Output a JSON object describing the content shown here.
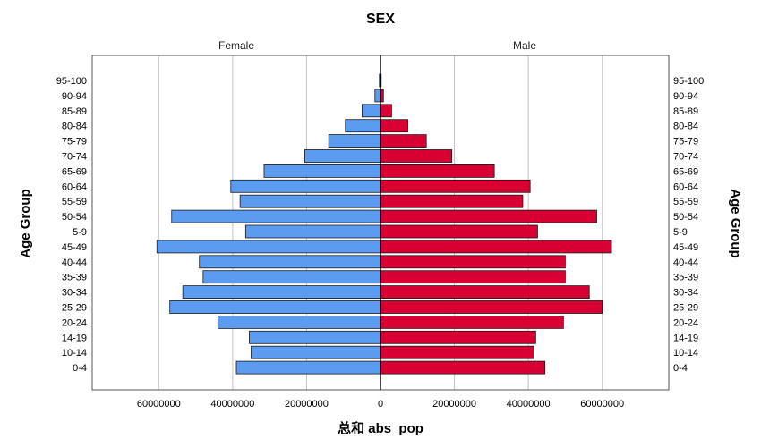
{
  "chart_data": {
    "type": "bar",
    "orientation": "horizontal-butterfly",
    "title": "SEX",
    "xlabel": "总和 abs_pop",
    "ylabel": "Age Group",
    "categories": [
      "0-4",
      "10-14",
      "14-19",
      "20-24",
      "25-29",
      "30-34",
      "35-39",
      "40-44",
      "45-49",
      "5-9",
      "50-54",
      "55-59",
      "60-64",
      "65-69",
      "70-74",
      "75-79",
      "80-84",
      "85-89",
      "90-94",
      "95-100"
    ],
    "series": [
      {
        "name": "Female",
        "color": "#5b9cf0",
        "values": [
          39000000,
          35000000,
          35500000,
          44000000,
          57000000,
          53500000,
          48000000,
          49000000,
          60500000,
          36500000,
          56500000,
          38000000,
          40500000,
          31500000,
          20500000,
          14000000,
          9500000,
          5000000,
          1500000,
          300000
        ]
      },
      {
        "name": "Male",
        "color": "#d80032",
        "values": [
          44500000,
          41500000,
          42000000,
          49500000,
          60000000,
          56500000,
          50000000,
          50000000,
          62500000,
          42500000,
          58500000,
          38500000,
          40500000,
          30800000,
          19300000,
          12400000,
          7400000,
          3000000,
          800000,
          200000
        ]
      }
    ],
    "xticks": [
      "60000000",
      "40000000",
      "20000000",
      "0",
      "20000000",
      "40000000",
      "60000000"
    ],
    "xlim": [
      -75000000,
      75000000
    ],
    "grid": true
  }
}
